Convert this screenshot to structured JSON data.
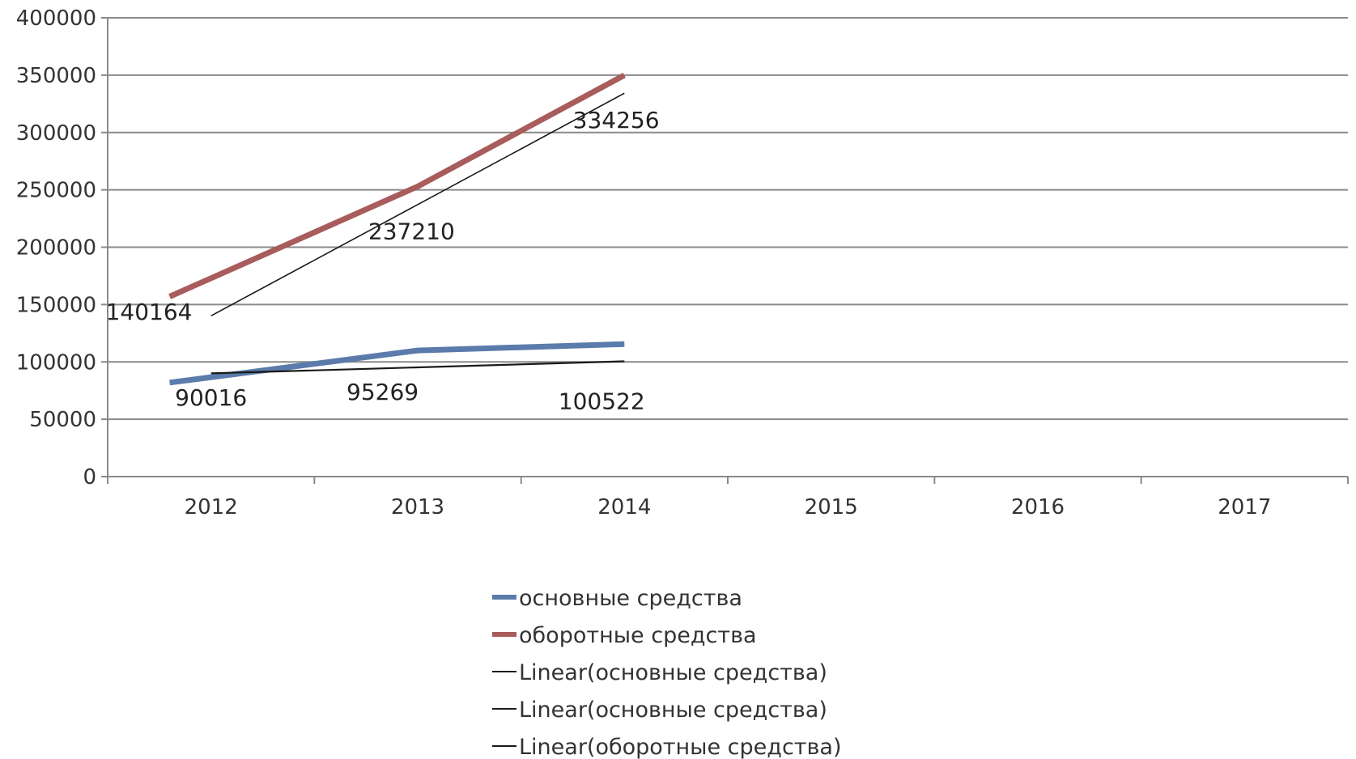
{
  "chart_data": {
    "type": "line",
    "categories": [
      "2012",
      "2013",
      "2014",
      "2015",
      "2016",
      "2017"
    ],
    "y_ticks": [
      "0",
      "50000",
      "100000",
      "150000",
      "200000",
      "250000",
      "300000",
      "350000",
      "400000"
    ],
    "ylim": [
      0,
      400000
    ],
    "grid": true,
    "legend_position": "bottom",
    "series": [
      {
        "name": "основные средства",
        "color": "#5b7bab",
        "width": 7,
        "x": [
          2012,
          2013,
          2014
        ],
        "values": [
          82000,
          110000,
          115500
        ]
      },
      {
        "name": "оборотные средства",
        "color": "#a85c5c",
        "width": 7,
        "x": [
          2012,
          2013,
          2014
        ],
        "values": [
          157000,
          253000,
          350000
        ]
      },
      {
        "name": "Linear(основные средства)",
        "color": "#1a1a1a",
        "width": 2.2,
        "x": [
          2012,
          2013,
          2014
        ],
        "values": [
          90016,
          95269,
          100522
        ]
      },
      {
        "name": "Linear(основные средства)",
        "color": "#1a1a1a",
        "width": 2.2,
        "x": [
          2012,
          2013,
          2014
        ],
        "values": [
          90016,
          95269,
          100522
        ],
        "hidden": true
      },
      {
        "name": "Linear(оборотные средства)",
        "color": "#1a1a1a",
        "width": 1.6,
        "x": [
          2012,
          2013,
          2014
        ],
        "values": [
          140164,
          237210,
          334256
        ]
      }
    ],
    "data_labels": [
      {
        "text": "140164",
        "x": 2011.7,
        "y": 137000
      },
      {
        "text": "237210",
        "x": 2012.97,
        "y": 207000
      },
      {
        "text": "334256",
        "x": 2013.96,
        "y": 304000
      },
      {
        "text": "90016",
        "x": 2012.0,
        "y": 62000
      },
      {
        "text": "95269",
        "x": 2012.83,
        "y": 67000
      },
      {
        "text": "100522",
        "x": 2013.89,
        "y": 59000
      }
    ]
  }
}
